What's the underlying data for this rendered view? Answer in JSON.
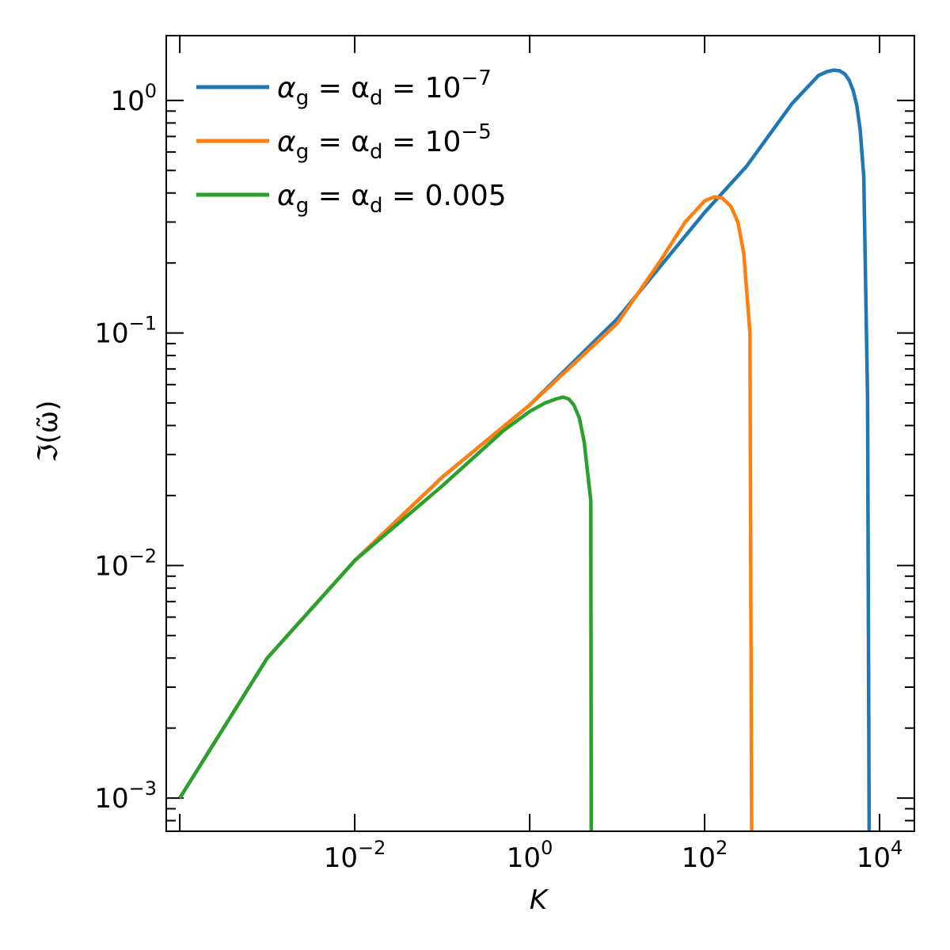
{
  "chart_data": {
    "type": "line",
    "x_scale": "log",
    "y_scale": "log",
    "xlabel": "K",
    "ylabel": "ℑ(ω̃)",
    "xlim": [
      7e-05,
      25000
    ],
    "ylim": [
      0.00072,
      1.9
    ],
    "x_ticks": [
      {
        "value": 0.01,
        "base": "10",
        "exp": "−2"
      },
      {
        "value": 1,
        "base": "10",
        "exp": "0"
      },
      {
        "value": 100,
        "base": "10",
        "exp": "2"
      },
      {
        "value": 10000,
        "base": "10",
        "exp": "4"
      }
    ],
    "y_ticks": [
      {
        "value": 0.001,
        "base": "10",
        "exp": "−3"
      },
      {
        "value": 0.01,
        "base": "10",
        "exp": "−2"
      },
      {
        "value": 0.1,
        "base": "10",
        "exp": "−1"
      },
      {
        "value": 1,
        "base": "10",
        "exp": "0"
      }
    ],
    "legend_position": "top-left",
    "series": [
      {
        "name": "α_g = α_d = 10^−7",
        "legend": {
          "lhs": "α",
          "sub1": "g",
          "mid": " = α",
          "sub2": "d",
          "rhs": " = 10",
          "sup": "−7"
        },
        "color": "#1f77b4",
        "x": [
          0.0001,
          0.001,
          0.01,
          0.1,
          1,
          10,
          100,
          300,
          1000,
          2000,
          2500,
          3000,
          3500,
          4000,
          4500,
          5000,
          5500,
          6000,
          6600,
          7300,
          7600
        ],
        "y": [
          0.001,
          0.004,
          0.0105,
          0.024,
          0.049,
          0.115,
          0.33,
          0.52,
          0.97,
          1.28,
          1.33,
          1.35,
          1.34,
          1.3,
          1.22,
          1.1,
          0.95,
          0.75,
          0.47,
          0.052,
          0.0007
        ]
      },
      {
        "name": "α_g = α_d = 10^−5",
        "legend": {
          "lhs": "α",
          "sub1": "g",
          "mid": " = α",
          "sub2": "d",
          "rhs": " = 10",
          "sup": "−5"
        },
        "color": "#ff7f0e",
        "x": [
          0.0001,
          0.001,
          0.01,
          0.1,
          1,
          10,
          30,
          60,
          100,
          130,
          160,
          200,
          240,
          280,
          330,
          345
        ],
        "y": [
          0.001,
          0.004,
          0.0105,
          0.024,
          0.049,
          0.11,
          0.2,
          0.3,
          0.37,
          0.385,
          0.38,
          0.35,
          0.3,
          0.22,
          0.1,
          0.0007
        ]
      },
      {
        "name": "α_g = α_d = 0.005",
        "legend": {
          "lhs": "α",
          "sub1": "g",
          "mid": " = α",
          "sub2": "d",
          "rhs": " = 0.005",
          "sup": ""
        },
        "color": "#2ca02c",
        "x": [
          0.0001,
          0.001,
          0.01,
          0.1,
          0.5,
          1,
          1.5,
          2,
          2.4,
          2.8,
          3.2,
          3.7,
          4.2,
          5.0,
          5.05
        ],
        "y": [
          0.001,
          0.004,
          0.0105,
          0.022,
          0.038,
          0.046,
          0.05,
          0.052,
          0.053,
          0.052,
          0.049,
          0.043,
          0.034,
          0.019,
          0.0007
        ]
      }
    ]
  }
}
